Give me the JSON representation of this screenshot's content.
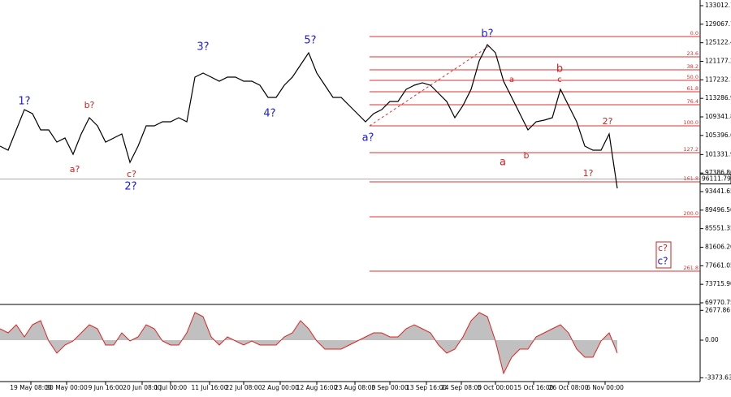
{
  "chart_data": {
    "type": "line",
    "price": {
      "color": "#000000",
      "values": [
        103120,
        102250,
        106570,
        110890,
        110030,
        106570,
        106570,
        103980,
        104850,
        101390,
        105710,
        109170,
        107440,
        103980,
        104850,
        105710,
        99660,
        103120,
        107440,
        107440,
        108300,
        108300,
        109170,
        108300,
        117810,
        118670,
        117810,
        116940,
        117810,
        117810,
        116940,
        116940,
        116080,
        113490,
        113490,
        116080,
        117810,
        120400,
        122990,
        118670,
        116080,
        113490,
        113490,
        111760,
        110030,
        108300,
        110030,
        110890,
        112620,
        112620,
        115210,
        116080,
        116600,
        116080,
        114350,
        112620,
        109170,
        111760,
        115210,
        121260,
        124720,
        122990,
        116940,
        113490,
        110030,
        106570,
        108300,
        108650,
        109170,
        115210,
        111760,
        108300,
        103120,
        102250,
        102250,
        105710,
        94130
      ]
    },
    "oscillator": {
      "color": "#c0c0c0",
      "line_color": "#e02020",
      "values": [
        1021,
        656,
        1385,
        292,
        1385,
        1750,
        -73,
        -1166,
        -437,
        -73,
        656,
        1385,
        1021,
        -437,
        -437,
        656,
        -73,
        292,
        1385,
        1021,
        -73,
        -437,
        -437,
        656,
        2479,
        2114,
        292,
        -437,
        292,
        -73,
        -437,
        -73,
        -437,
        -437,
        -437,
        292,
        656,
        1750,
        1021,
        -73,
        -802,
        -802,
        -802,
        -437,
        -73,
        292,
        656,
        656,
        292,
        292,
        1021,
        1385,
        1021,
        656,
        -437,
        -1166,
        -802,
        292,
        1750,
        2479,
        2114,
        -73,
        -2989,
        -1531,
        -802,
        -802,
        292,
        656,
        1021,
        1385,
        656,
        -802,
        -1531,
        -1531,
        -73,
        656,
        -1166
      ]
    },
    "xlim": [
      0,
      86.2
    ],
    "xticks": [
      {
        "value": 3.8,
        "label": "19 May 08:00"
      },
      {
        "value": 8.2,
        "label": "30 May 00:00"
      },
      {
        "value": 13,
        "label": "9 Jun 16:00"
      },
      {
        "value": 17.5,
        "label": "20 Jun 08:00"
      },
      {
        "value": 21,
        "label": "1 Jul 00:00"
      },
      {
        "value": 25.8,
        "label": "11 Jul 16:00"
      },
      {
        "value": 30,
        "label": "22 Jul 08:00"
      },
      {
        "value": 34.5,
        "label": "2 Aug 00:00"
      },
      {
        "value": 39,
        "label": "12 Aug 16:00"
      },
      {
        "value": 43.7,
        "label": "23 Aug 08:00"
      },
      {
        "value": 48,
        "label": "3 Sep 00:00"
      },
      {
        "value": 52.5,
        "label": "13 Sep 16:00"
      },
      {
        "value": 56.8,
        "label": "24 Sep 08:00"
      },
      {
        "value": 61,
        "label": "5 Oct 00:00"
      },
      {
        "value": 65.7,
        "label": "15 Oct 16:00"
      },
      {
        "value": 70,
        "label": "26 Oct 08:00"
      },
      {
        "value": 74.5,
        "label": "6 Nov 00:00"
      }
    ],
    "ylim": [
      69770.75,
      133012.7
    ],
    "yticks": [
      {
        "value": 133012.7,
        "label": "133012.70"
      },
      {
        "value": 129067.75,
        "label": "129067.75"
      },
      {
        "value": 125122.4,
        "label": "125122.40"
      },
      {
        "value": 121177.25,
        "label": "121177.25"
      },
      {
        "value": 117232.1,
        "label": "117232.10"
      },
      113286.95,
      {
        "value": 109341.8,
        "label": "109341.80"
      },
      105396.65,
      101331.95,
      {
        "value": 97386.8,
        "label": "97386.80"
      },
      93441.65,
      {
        "value": 89496.5,
        "label": "89496.50"
      },
      85551.35,
      {
        "value": 81606.2,
        "label": "81606.20"
      },
      77661.05,
      {
        "value": 73715.9,
        "label": "73715.90"
      },
      69770.75
    ],
    "y2lim": [
      -3718,
      3062
    ],
    "y2ticks": [
      2677.86,
      {
        "value": 0,
        "label": "0.00"
      },
      -3373.63
    ],
    "last_price": 96111.79,
    "fib_color": "#e03030",
    "fib_levels": [
      {
        "value": 126450,
        "label": "0.0"
      },
      {
        "value": 122130,
        "label": "23.6"
      },
      {
        "value": 119360,
        "label": "38.2"
      },
      {
        "value": 117110,
        "label": "50.0"
      },
      {
        "value": 114700,
        "label": "61.8"
      },
      {
        "value": 111930,
        "label": "76.4"
      },
      {
        "value": 107440,
        "label": "100.0"
      },
      {
        "value": 101740,
        "label": "127.2"
      },
      {
        "value": 95520,
        "label": "161.8"
      },
      {
        "value": 88080,
        "label": "200.0"
      },
      {
        "value": 76510,
        "label": "261.8"
      }
    ],
    "wave_labels": [
      {
        "text": "1?",
        "color": "#1a1ae6"
      },
      {
        "text": "3?",
        "color": "#1a1ae6"
      },
      {
        "text": "5?",
        "color": "#1a1ae6"
      },
      {
        "text": "2?",
        "color": "#1a1ae6"
      },
      {
        "text": "4?",
        "color": "#1a1ae6"
      },
      {
        "text": "a?",
        "color": "#1a1ae6"
      },
      {
        "text": "b?",
        "color": "#1a1ae6"
      },
      {
        "text": "c?",
        "color": "#1a1ae6"
      },
      {
        "text": "a?",
        "color": "#d02020"
      },
      {
        "text": "b?",
        "color": "#d02020"
      },
      {
        "text": "c?",
        "color": "#d02020"
      },
      {
        "text": "a",
        "color": "#d02020"
      },
      {
        "text": "b",
        "color": "#d02020"
      },
      {
        "text": "a",
        "color": "#d02020"
      },
      {
        "text": "b",
        "color": "#d02020"
      },
      {
        "text": "c",
        "color": "#d02020"
      },
      {
        "text": "1?",
        "color": "#d02020"
      },
      {
        "text": "2?",
        "color": "#d02020"
      },
      {
        "text": "c?",
        "color": "#d02020"
      }
    ]
  }
}
